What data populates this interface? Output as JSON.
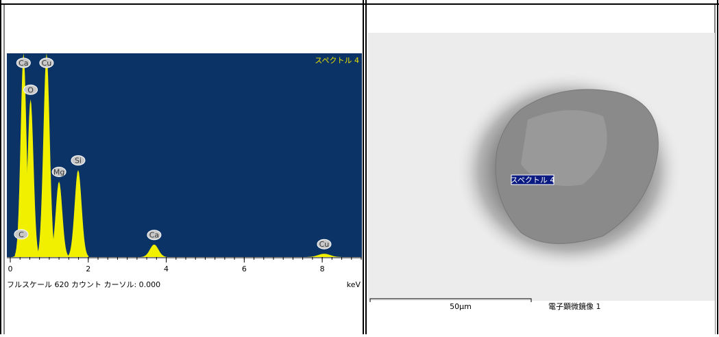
{
  "spectrum": {
    "title": "スペクトル 4",
    "xlim": [
      0,
      9
    ],
    "ylim": [
      0,
      620
    ],
    "xticks": [
      0,
      2,
      4,
      6,
      8
    ],
    "unit": "keV",
    "footer": "フルスケール 620 カウント カーソル: 0.000",
    "peaks": [
      {
        "label": "C",
        "x": 0.28,
        "y": 40
      },
      {
        "label": "Ca",
        "x": 0.34,
        "y": 620
      },
      {
        "label": "O",
        "x": 0.52,
        "y": 480
      },
      {
        "label": "Cu",
        "x": 0.93,
        "y": 620
      },
      {
        "label": "Mg",
        "x": 1.25,
        "y": 230
      },
      {
        "label": "Si",
        "x": 1.74,
        "y": 265
      },
      {
        "label": "Ca",
        "x": 3.69,
        "y": 38
      },
      {
        "label": "Cu",
        "x": 8.05,
        "y": 10
      }
    ]
  },
  "image": {
    "label": "スペクトル 4",
    "scale": "50μm",
    "caption": "電子顕微鏡像 1"
  }
}
